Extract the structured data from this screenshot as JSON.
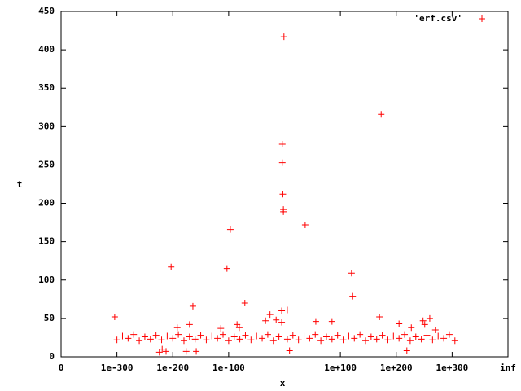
{
  "chart_data": {
    "type": "scatter",
    "x_label": "x",
    "y_label": "t",
    "xlim": [
      0,
      8
    ],
    "ylim": [
      0,
      450
    ],
    "xticks": [
      0,
      {
        "value": 1,
        "label": "1e-300"
      },
      {
        "value": 2,
        "label": "1e-200"
      },
      {
        "value": 3,
        "label": "1e-100"
      },
      {
        "value": 5,
        "label": "1e+100"
      },
      {
        "value": 6,
        "label": "1e+200"
      },
      {
        "value": 7,
        "label": "1e+300"
      },
      {
        "value": 8,
        "label": "inf"
      }
    ],
    "yticks": [
      0,
      50,
      100,
      150,
      200,
      250,
      300,
      350,
      400,
      450
    ],
    "legend": "top-right",
    "series": [
      {
        "name": "'erf.csv'",
        "color": "#ff0000",
        "x": [
          1.0,
          1.1,
          1.2,
          1.3,
          1.4,
          1.5,
          1.6,
          1.7,
          1.8,
          1.9,
          2.0,
          2.1,
          2.2,
          2.3,
          2.4,
          2.5,
          2.6,
          2.7,
          2.8,
          2.9,
          3.0,
          3.1,
          3.2,
          3.3,
          3.4,
          3.5,
          3.6,
          3.7,
          3.8,
          3.9,
          4.05,
          4.15,
          4.25,
          4.35,
          4.45,
          4.55,
          4.65,
          4.75,
          4.85,
          4.95,
          5.05,
          5.15,
          5.25,
          5.35,
          5.45,
          5.55,
          5.65,
          5.75,
          5.85,
          5.95,
          6.05,
          6.15,
          6.25,
          6.35,
          6.45,
          6.55,
          6.65,
          6.75,
          6.85,
          6.95,
          7.05,
          0.96,
          1.76,
          1.81,
          1.88,
          1.97,
          2.08,
          2.24,
          2.3,
          2.36,
          2.42,
          2.86,
          2.97,
          3.03,
          3.15,
          3.19,
          3.29,
          3.66,
          3.74,
          3.85,
          3.95,
          3.95,
          3.96,
          3.96,
          3.97,
          3.98,
          3.98,
          3.99,
          4.05,
          4.09,
          4.37,
          4.56,
          4.85,
          5.2,
          5.22,
          5.7,
          5.73,
          6.05,
          6.19,
          6.27,
          6.48,
          6.51,
          6.6,
          6.7
        ],
        "values": [
          22,
          27,
          24,
          29,
          21,
          26,
          23,
          28,
          22,
          27,
          24,
          29,
          21,
          26,
          23,
          28,
          22,
          27,
          24,
          29,
          21,
          26,
          23,
          28,
          22,
          27,
          24,
          29,
          21,
          26,
          23,
          28,
          22,
          27,
          24,
          29,
          21,
          26,
          23,
          28,
          22,
          27,
          24,
          29,
          21,
          26,
          23,
          28,
          22,
          27,
          24,
          29,
          21,
          26,
          23,
          28,
          22,
          27,
          24,
          29,
          21,
          52,
          6,
          10,
          7,
          117,
          38,
          7,
          42,
          66,
          7,
          37,
          115,
          166,
          42,
          38,
          70,
          47,
          55,
          48,
          60,
          45,
          277,
          253,
          212,
          192,
          189,
          417,
          61,
          8,
          172,
          46,
          46,
          109,
          79,
          52,
          316,
          43,
          8,
          38,
          47,
          42,
          50,
          35
        ]
      }
    ]
  }
}
